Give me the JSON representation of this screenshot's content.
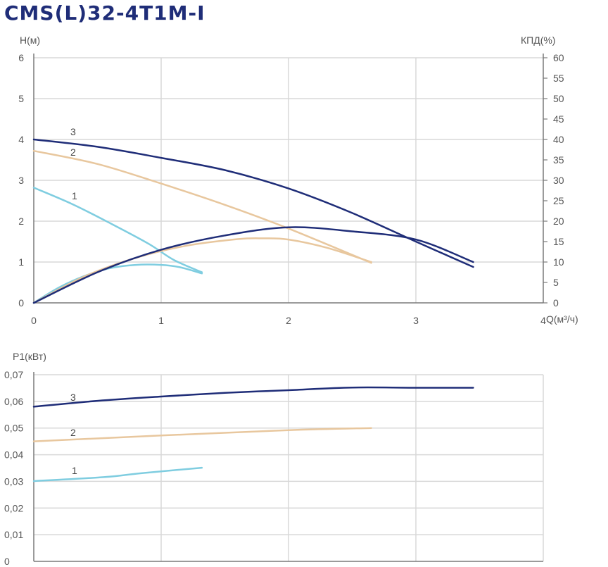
{
  "title": "CMS(L)32-4T1M-I",
  "colors": {
    "curve_1": "#7fcde0",
    "curve_2": "#e8c79e",
    "curve_3": "#1f2d78",
    "grid": "#d8d8d8",
    "axis": "#7a7a7a",
    "title": "#1f2d78"
  },
  "chart_data": [
    {
      "type": "line",
      "xlabel": "Q(м³/ч)",
      "ylabel": "H(м)",
      "y2label": "КПД(%)",
      "xlim": [
        0,
        4
      ],
      "ylim": [
        0,
        6
      ],
      "y2lim": [
        0,
        60
      ],
      "xticks": [
        "0",
        "1",
        "2",
        "3",
        "4"
      ],
      "yticks": [
        "0",
        "1",
        "2",
        "3",
        "4",
        "5",
        "6"
      ],
      "y2ticks": [
        "0",
        "5",
        "10",
        "15",
        "20",
        "25",
        "30",
        "35",
        "40",
        "45",
        "50",
        "55",
        "60"
      ],
      "grid": true,
      "series": [
        {
          "name": "1",
          "kind": "head",
          "axis": "left",
          "color": "#7fcde0",
          "x": [
            0,
            0.3,
            0.6,
            0.9,
            1.1,
            1.32
          ],
          "y": [
            2.82,
            2.42,
            1.95,
            1.45,
            1.05,
            0.75
          ]
        },
        {
          "name": "2",
          "kind": "head",
          "axis": "left",
          "color": "#e8c79e",
          "x": [
            0,
            0.5,
            1.0,
            1.5,
            2.0,
            2.65
          ],
          "y": [
            3.72,
            3.4,
            2.92,
            2.4,
            1.82,
            0.98
          ]
        },
        {
          "name": "3",
          "kind": "head",
          "axis": "left",
          "color": "#1f2d78",
          "x": [
            0,
            0.5,
            1.0,
            1.5,
            2.0,
            2.5,
            3.0,
            3.45
          ],
          "y": [
            4.0,
            3.82,
            3.55,
            3.25,
            2.8,
            2.2,
            1.5,
            0.88
          ]
        },
        {
          "name": "1",
          "kind": "efficiency",
          "axis": "right",
          "color": "#7fcde0",
          "x": [
            0,
            0.2,
            0.4,
            0.6,
            0.8,
            1.0,
            1.15,
            1.32
          ],
          "y": [
            0,
            3.8,
            6.6,
            8.5,
            9.3,
            9.3,
            8.7,
            7.2
          ]
        },
        {
          "name": "2",
          "kind": "efficiency",
          "axis": "right",
          "color": "#e8c79e",
          "x": [
            0,
            0.4,
            0.8,
            1.2,
            1.6,
            1.8,
            2.0,
            2.3,
            2.65
          ],
          "y": [
            0,
            6.5,
            11.0,
            14.0,
            15.6,
            15.8,
            15.5,
            13.5,
            10.0
          ]
        },
        {
          "name": "3",
          "kind": "efficiency",
          "axis": "right",
          "color": "#1f2d78",
          "x": [
            0,
            0.5,
            1.0,
            1.5,
            2.0,
            2.5,
            3.0,
            3.45
          ],
          "y": [
            0,
            7.5,
            13.0,
            16.5,
            18.5,
            17.5,
            15.5,
            10.0
          ]
        }
      ],
      "annotations": [
        "1",
        "2",
        "3"
      ]
    },
    {
      "type": "line",
      "xlabel": "",
      "ylabel": "P1(кВт)",
      "xlim": [
        0,
        4
      ],
      "ylim": [
        0,
        0.07
      ],
      "yticks": [
        "0",
        "0,01",
        "0,02",
        "0,03",
        "0,04",
        "0,05",
        "0,06",
        "0,07"
      ],
      "grid": true,
      "series": [
        {
          "name": "1",
          "color": "#7fcde0",
          "x": [
            0,
            0.55,
            0.85,
            1.32
          ],
          "y": [
            0.0301,
            0.0316,
            0.0331,
            0.0351
          ]
        },
        {
          "name": "2",
          "color": "#e8c79e",
          "x": [
            0,
            1.0,
            2.0,
            2.65
          ],
          "y": [
            0.045,
            0.0472,
            0.0492,
            0.05
          ]
        },
        {
          "name": "3",
          "color": "#1f2d78",
          "x": [
            0,
            0.5,
            1.0,
            1.5,
            2.0,
            2.5,
            3.0,
            3.45
          ],
          "y": [
            0.058,
            0.0602,
            0.0618,
            0.0632,
            0.0642,
            0.0652,
            0.0651,
            0.0651
          ]
        }
      ],
      "annotations": [
        "1",
        "2",
        "3"
      ]
    }
  ]
}
